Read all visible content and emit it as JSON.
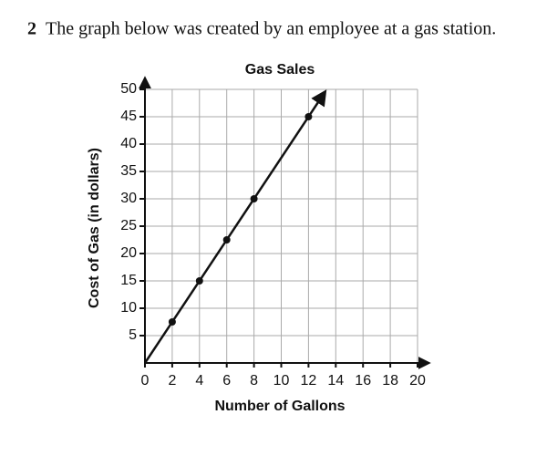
{
  "question": {
    "number": "2",
    "text": "The graph below was created by an employee at a gas station."
  },
  "chart_data": {
    "type": "line",
    "title": "Gas Sales",
    "x_label": "Number of Gallons",
    "y_label": "Cost of Gas (in dollars)",
    "xlim": [
      0,
      20
    ],
    "xticks": [
      0,
      2,
      4,
      6,
      8,
      10,
      12,
      14,
      16,
      18,
      20
    ],
    "ylim": [
      0,
      50
    ],
    "yticks": [
      5,
      10,
      15,
      20,
      25,
      30,
      35,
      40,
      45,
      50
    ],
    "grid": true,
    "color": "#111111",
    "line": {
      "x": [
        0,
        13.2
      ],
      "values": [
        0,
        49.5
      ]
    },
    "points": {
      "x": [
        2,
        4,
        6,
        8,
        12
      ],
      "values": [
        7.5,
        15,
        22.5,
        30,
        45
      ]
    }
  }
}
